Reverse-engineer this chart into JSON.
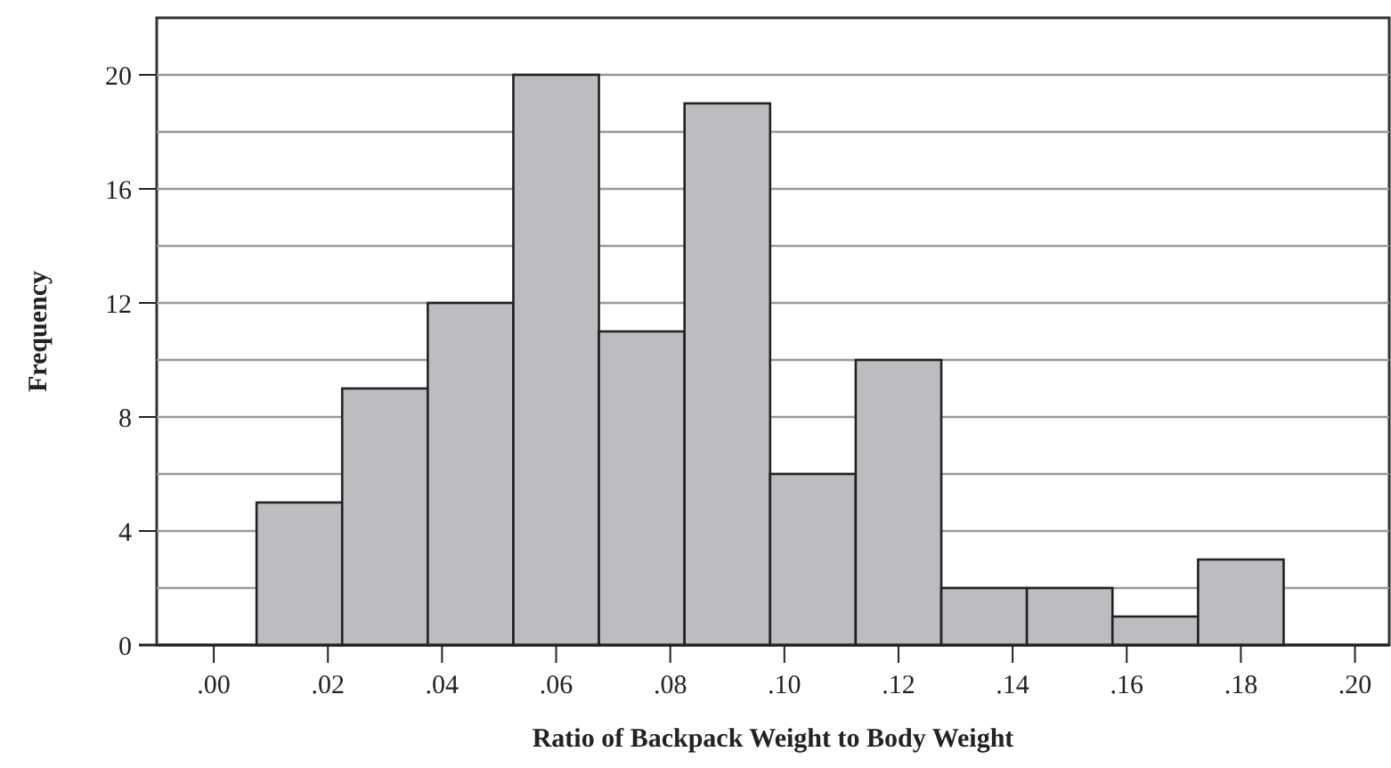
{
  "chart_data": {
    "type": "histogram",
    "xlabel": "Ratio of Backpack Weight to Body Weight",
    "ylabel": "Frequency",
    "bins": [
      0.0075,
      0.0225,
      0.0375,
      0.0525,
      0.0675,
      0.0825,
      0.0975,
      0.1125,
      0.1275,
      0.1425,
      0.1575,
      0.1725,
      0.1875
    ],
    "values": [
      5,
      9,
      12,
      20,
      11,
      19,
      6,
      10,
      2,
      2,
      1,
      3
    ],
    "color": "#bcbdc1",
    "xlim": [
      -0.01,
      0.206
    ],
    "ylim": [
      0,
      22
    ],
    "xticks": [
      {
        "value": 0,
        "label": ".00"
      },
      {
        "value": 0.02,
        "label": ".02"
      },
      {
        "value": 0.04,
        "label": ".04"
      },
      {
        "value": 0.06,
        "label": ".06"
      },
      {
        "value": 0.08,
        "label": ".08"
      },
      {
        "value": 0.1,
        "label": ".10"
      },
      {
        "value": 0.12,
        "label": ".12"
      },
      {
        "value": 0.14,
        "label": ".14"
      },
      {
        "value": 0.16,
        "label": ".16"
      },
      {
        "value": 0.18,
        "label": ".18"
      },
      {
        "value": 0.2,
        "label": ".20"
      }
    ],
    "yticks": [
      0,
      {
        "value": 2,
        "label": null
      },
      4,
      {
        "value": 6,
        "label": null
      },
      8,
      {
        "value": 10,
        "label": null
      },
      12,
      {
        "value": 14,
        "label": null
      },
      16,
      {
        "value": 18,
        "label": null
      },
      20
    ],
    "grid": "y"
  }
}
